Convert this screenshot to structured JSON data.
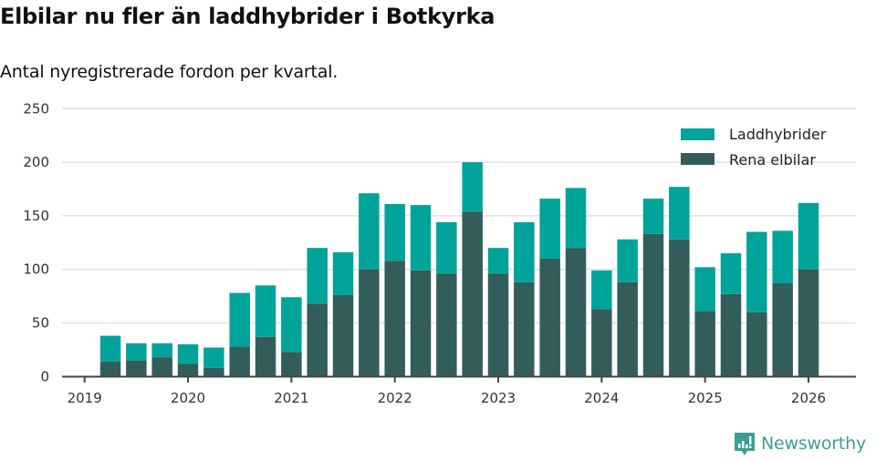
{
  "header": {
    "title": "Elbilar nu fler än laddhybrider i Botkyrka",
    "subtitle": "Antal nyregistrerade fordon per kvartal."
  },
  "legend": [
    {
      "label": "Laddhybrider",
      "color": "#00A39A"
    },
    {
      "label": "Rena elbilar",
      "color": "#335D5A"
    }
  ],
  "branding": {
    "name": "Newsworthy",
    "color": "#3E9E92"
  },
  "chart_data": {
    "type": "bar",
    "stacked": true,
    "title": "Elbilar nu fler än laddhybrider i Botkyrka",
    "subtitle": "Antal nyregistrerade fordon per kvartal.",
    "xlabel": "",
    "ylabel": "",
    "ylim": [
      0,
      250
    ],
    "yticks": [
      0,
      50,
      100,
      150,
      200,
      250
    ],
    "xticks": [
      "2019",
      "2020",
      "2021",
      "2022",
      "2023",
      "2024",
      "2025",
      "2026"
    ],
    "grid": true,
    "legend_position": "top-right",
    "categories": [
      "2019 Q1",
      "2019 Q2",
      "2019 Q3",
      "2019 Q4",
      "2020 Q1",
      "2020 Q2",
      "2020 Q3",
      "2020 Q4",
      "2021 Q1",
      "2021 Q2",
      "2021 Q3",
      "2021 Q4",
      "2022 Q1",
      "2022 Q2",
      "2022 Q3",
      "2022 Q4",
      "2023 Q1",
      "2023 Q2",
      "2023 Q3",
      "2023 Q4",
      "2024 Q1",
      "2024 Q2",
      "2024 Q3",
      "2024 Q4",
      "2025 Q1",
      "2025 Q2",
      "2025 Q3",
      "2025 Q4"
    ],
    "series": [
      {
        "name": "Rena elbilar",
        "color": "#335D5A",
        "values": [
          14,
          15,
          18,
          12,
          8,
          28,
          37,
          23,
          68,
          76,
          100,
          108,
          99,
          96,
          154,
          96,
          88,
          110,
          120,
          63,
          88,
          133,
          128,
          61,
          77,
          60,
          87,
          100
        ]
      },
      {
        "name": "Laddhybrider",
        "color": "#00A39A",
        "values": [
          24,
          16,
          13,
          18,
          19,
          50,
          48,
          51,
          52,
          40,
          71,
          53,
          61,
          48,
          46,
          24,
          56,
          56,
          56,
          36,
          40,
          33,
          49,
          41,
          38,
          75,
          49,
          62
        ]
      }
    ],
    "totals": [
      38,
      31,
      31,
      30,
      27,
      78,
      85,
      74,
      120,
      116,
      171,
      161,
      160,
      144,
      200,
      120,
      144,
      166,
      176,
      99,
      128,
      166,
      177,
      102,
      115,
      135,
      136,
      162
    ]
  }
}
